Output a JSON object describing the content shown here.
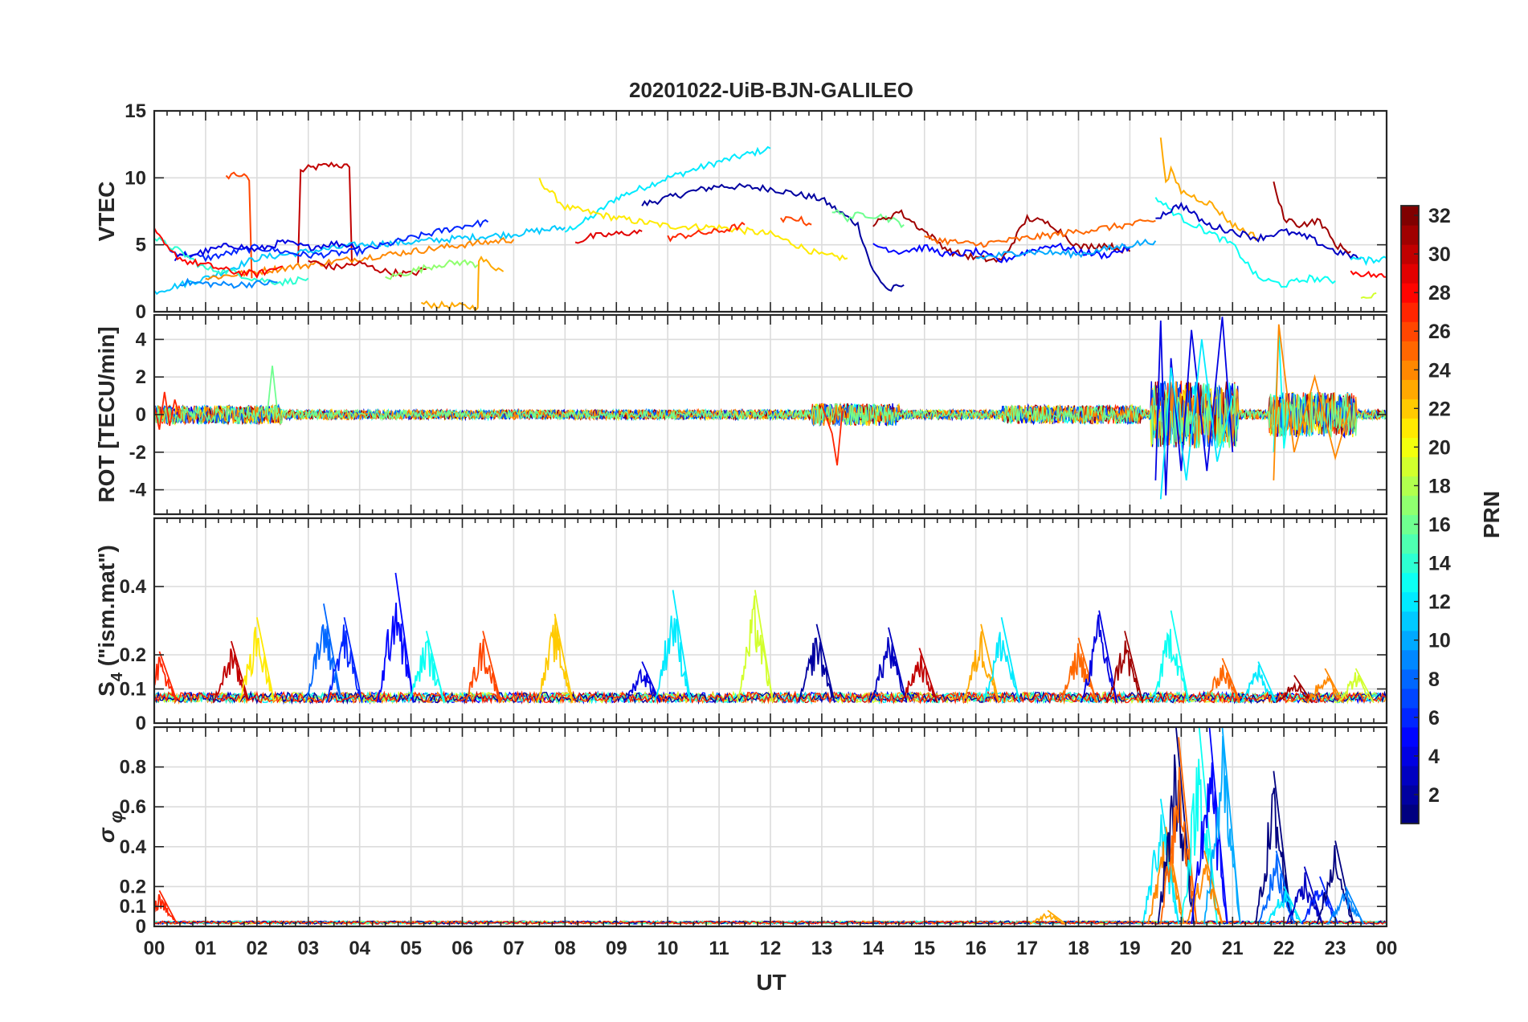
{
  "chart_data": {
    "type": "line",
    "title": "20201022-UiB-BJN-GALILEO",
    "xlabel": "UT",
    "xlim": [
      0,
      24
    ],
    "x_tick_labels": [
      "00",
      "01",
      "02",
      "03",
      "04",
      "05",
      "06",
      "07",
      "08",
      "09",
      "10",
      "11",
      "12",
      "13",
      "14",
      "15",
      "16",
      "17",
      "18",
      "19",
      "20",
      "21",
      "22",
      "23",
      "00"
    ],
    "grid": true,
    "colorbar": {
      "label": "PRN",
      "range": [
        1,
        32
      ],
      "colormap": "jet",
      "tick_labels": [
        "2",
        "4",
        "6",
        "8",
        "10",
        "12",
        "14",
        "16",
        "18",
        "20",
        "22",
        "24",
        "26",
        "28",
        "30",
        "32"
      ],
      "placement": "right"
    },
    "panels": [
      {
        "ylabel": "VTEC",
        "ylim": [
          0,
          15
        ],
        "y_ticks": [
          0,
          5,
          10,
          15
        ],
        "y_tick_labels": [
          "0",
          "5",
          "10",
          "15"
        ],
        "series": [
          {
            "prn": 30,
            "x": [
              2.8,
              2.85,
              3.0,
              3.5,
              3.8,
              3.85
            ],
            "y": [
              3.5,
              10.5,
              10.7,
              11.0,
              10.8,
              3.5
            ]
          },
          {
            "prn": 26,
            "x": [
              1.4,
              1.5,
              1.7,
              1.85,
              1.9
            ],
            "y": [
              10.0,
              10.3,
              10.2,
              9.8,
              2.5
            ]
          },
          {
            "prn": 12,
            "x": [
              8.0,
              8.5,
              9.0,
              10.0,
              11.0,
              12.0
            ],
            "y": [
              6.0,
              7.0,
              8.5,
              10.0,
              11.2,
              12.2
            ]
          },
          {
            "prn": 2,
            "x": [
              9.5,
              10.5,
              11.0,
              12.0,
              13.0,
              13.7,
              14.0,
              14.3,
              14.6
            ],
            "y": [
              8.0,
              9.0,
              9.4,
              9.2,
              8.4,
              6.5,
              3.0,
              1.6,
              2.0
            ]
          },
          {
            "prn": 21,
            "x": [
              7.5,
              8.0,
              9.0,
              10.0,
              11.0,
              12.0,
              13.0,
              13.5
            ],
            "y": [
              9.8,
              7.8,
              7.0,
              6.4,
              6.3,
              5.8,
              4.2,
              4.0
            ]
          },
          {
            "prn": 23,
            "x": [
              5.2,
              5.5,
              6.0,
              6.3,
              6.32,
              6.8
            ],
            "y": [
              0.6,
              0.5,
              0.4,
              0.3,
              4.0,
              3.0
            ]
          },
          {
            "prn": 11,
            "x": [
              0.0,
              1.0,
              2.0,
              3.0,
              4.0,
              5.0,
              6.0,
              7.0,
              8.0
            ],
            "y": [
              1.5,
              2.5,
              4.0,
              4.5,
              5.0,
              5.2,
              5.5,
              5.8,
              6.3
            ]
          },
          {
            "prn": 6,
            "x": [
              0.3,
              1.0,
              2.0,
              3.0,
              4.0,
              5.0,
              6.0,
              6.5
            ],
            "y": [
              4.5,
              4.0,
              4.8,
              4.2,
              4.5,
              5.5,
              6.4,
              6.7
            ]
          },
          {
            "prn": 4,
            "x": [
              0.4,
              1.0,
              1.5,
              2.0,
              2.5,
              3.0,
              3.5,
              4.0
            ],
            "y": [
              4.0,
              4.5,
              5.0,
              4.6,
              5.2,
              4.8,
              5.1,
              4.9
            ]
          },
          {
            "prn": 24,
            "x": [
              1.0,
              2.0,
              3.0,
              4.0,
              5.0,
              6.0,
              7.0
            ],
            "y": [
              2.5,
              3.0,
              3.5,
              4.0,
              4.5,
              5.0,
              5.4
            ]
          },
          {
            "prn": 14,
            "x": [
              0.0,
              0.5,
              1.0,
              1.5,
              2.0,
              2.5,
              3.0
            ],
            "y": [
              5.5,
              4.5,
              3.2,
              3.0,
              2.4,
              2.2,
              2.5
            ]
          },
          {
            "prn": 28,
            "x": [
              0.0,
              0.3,
              0.6,
              1.0,
              1.5,
              2.0,
              2.5
            ],
            "y": [
              6.0,
              4.5,
              3.8,
              3.5,
              3.0,
              2.8,
              3.4
            ]
          },
          {
            "prn": 9,
            "x": [
              0.5,
              1.0,
              1.5,
              2.0,
              2.4
            ],
            "y": [
              2.2,
              2.1,
              2.0,
              2.1,
              2.2
            ]
          },
          {
            "prn": 30,
            "x": [
              3.0,
              3.5,
              4.0,
              4.5,
              5.0,
              5.3
            ],
            "y": [
              3.8,
              3.3,
              3.6,
              3.0,
              2.8,
              3.2
            ]
          },
          {
            "prn": 17,
            "x": [
              4.5,
              5.0,
              5.5,
              6.0,
              6.3
            ],
            "y": [
              2.5,
              3.0,
              3.5,
              3.7,
              3.5
            ]
          },
          {
            "prn": 29,
            "x": [
              8.2,
              8.5,
              9.0,
              9.5
            ],
            "y": [
              5.2,
              5.6,
              5.8,
              6.0
            ]
          },
          {
            "prn": 27,
            "x": [
              10.0,
              10.5,
              11.0,
              11.5
            ],
            "y": [
              5.5,
              5.8,
              6.0,
              6.5
            ]
          },
          {
            "prn": 26,
            "x": [
              12.2,
              12.5,
              12.8
            ],
            "y": [
              6.8,
              7.0,
              6.5
            ]
          },
          {
            "prn": 16,
            "x": [
              13.2,
              13.5,
              13.8,
              14.2,
              14.6
            ],
            "y": [
              7.6,
              7.0,
              7.3,
              7.1,
              6.5
            ]
          },
          {
            "prn": 31,
            "x": [
              14.0,
              14.5,
              15.0,
              15.5,
              16.0,
              16.5,
              17.0,
              17.5,
              18.0,
              18.5,
              19.0
            ],
            "y": [
              6.5,
              7.5,
              6.0,
              4.5,
              4.0,
              3.8,
              7.0,
              6.5,
              4.8,
              5.0,
              4.5
            ]
          },
          {
            "prn": 5,
            "x": [
              14.0,
              14.5,
              15.0,
              15.5,
              16.0,
              16.5,
              17.0,
              17.5,
              18.0,
              18.5,
              19.0
            ],
            "y": [
              5.0,
              4.5,
              4.8,
              4.2,
              4.5,
              3.8,
              4.5,
              5.0,
              4.5,
              4.2,
              4.8
            ]
          },
          {
            "prn": 25,
            "x": [
              15.0,
              16.0,
              17.0,
              18.0,
              19.0,
              19.5
            ],
            "y": [
              5.5,
              5.0,
              5.5,
              6.0,
              6.5,
              6.8
            ]
          },
          {
            "prn": 10,
            "x": [
              16.0,
              17.0,
              18.0,
              19.0,
              19.5
            ],
            "y": [
              4.0,
              4.5,
              4.3,
              5.0,
              5.3
            ]
          },
          {
            "prn": 23,
            "x": [
              19.6,
              19.7,
              19.8,
              20.0,
              20.3,
              20.6,
              21.0,
              21.5
            ],
            "y": [
              13.0,
              9.5,
              10.5,
              9.0,
              8.5,
              8.0,
              6.5,
              5.5
            ]
          },
          {
            "prn": 13,
            "x": [
              19.5,
              20.0,
              20.5,
              21.0,
              21.5,
              22.0,
              22.5,
              23.0
            ],
            "y": [
              8.5,
              7.0,
              6.0,
              5.0,
              2.5,
              2.0,
              2.5,
              2.3
            ]
          },
          {
            "prn": 3,
            "x": [
              19.5,
              20.0,
              20.5,
              21.0,
              21.5,
              22.0,
              22.5,
              23.0,
              23.5
            ],
            "y": [
              7.0,
              8.0,
              6.5,
              6.0,
              5.5,
              6.0,
              5.5,
              4.5,
              4.0
            ]
          },
          {
            "prn": 31,
            "x": [
              21.8,
              22.0,
              22.3,
              22.7,
              23.0,
              23.3
            ],
            "y": [
              9.5,
              7.0,
              6.5,
              6.8,
              5.0,
              4.5
            ]
          },
          {
            "prn": 12,
            "x": [
              23.3,
              23.6,
              23.9,
              24.0
            ],
            "y": [
              4.0,
              3.8,
              4.0,
              4.0
            ]
          },
          {
            "prn": 28,
            "x": [
              23.3,
              23.6,
              24.0
            ],
            "y": [
              3.0,
              2.8,
              2.6
            ]
          },
          {
            "prn": 19,
            "x": [
              23.5,
              23.8
            ],
            "y": [
              1.0,
              1.4
            ]
          }
        ]
      },
      {
        "ylabel": "ROT [TECU/min]",
        "ylim": [
          -5.3,
          5.3
        ],
        "y_ticks": [
          -4,
          -2,
          0,
          2,
          4
        ],
        "y_tick_labels": [
          "-4",
          "-2",
          "0",
          "2",
          "4"
        ],
        "series_note": "",
        "series": [
          {
            "prn": 27,
            "x": [
              0.0,
              0.1,
              0.2,
              0.3,
              0.4,
              0.5
            ],
            "y": [
              0.5,
              -0.8,
              1.2,
              -0.6,
              0.8,
              -0.2
            ]
          },
          {
            "prn": 16,
            "x": [
              2.2,
              2.3,
              2.4
            ],
            "y": [
              0.0,
              2.6,
              0.1
            ]
          },
          {
            "prn": 27,
            "x": [
              13.0,
              13.2,
              13.3,
              13.4
            ],
            "y": [
              0.5,
              -1.0,
              -2.7,
              0.2
            ]
          },
          {
            "prn": 4,
            "x": [
              19.5,
              19.6,
              19.7,
              19.8,
              20.0,
              20.2,
              20.5,
              20.8,
              21.0
            ],
            "y": [
              -3.5,
              5.0,
              -4.3,
              3.0,
              -3.0,
              4.5,
              -3.0,
              5.2,
              -2.0
            ]
          },
          {
            "prn": 12,
            "x": [
              19.6,
              19.8,
              20.1,
              20.4,
              20.7,
              21.0
            ],
            "y": [
              -4.5,
              2.5,
              -3.5,
              4.0,
              -2.5,
              1.0
            ]
          },
          {
            "prn": 13,
            "x": [
              21.8,
              21.9,
              22.0,
              22.1
            ],
            "y": [
              -2.0,
              4.5,
              -1.8,
              0.5
            ]
          },
          {
            "prn": 24,
            "x": [
              21.8,
              21.9,
              22.2,
              22.6,
              23.0,
              23.3
            ],
            "y": [
              -3.5,
              4.8,
              -2.0,
              2.0,
              -2.3,
              0.5
            ]
          }
        ]
      },
      {
        "ylabel": "S4 (\"ism.mat\")",
        "ylim": [
          0,
          0.6
        ],
        "y_ticks": [
          0,
          0.1,
          0.2,
          0.4
        ],
        "y_tick_labels": [
          "0",
          "0.1",
          "0.2",
          "0.4"
        ],
        "peaks": [
          {
            "prn": 27,
            "x": 0.1,
            "y": 0.21
          },
          {
            "prn": 30,
            "x": 1.5,
            "y": 0.24
          },
          {
            "prn": 21,
            "x": 2.0,
            "y": 0.31
          },
          {
            "prn": 8,
            "x": 3.3,
            "y": 0.35
          },
          {
            "prn": 6,
            "x": 3.7,
            "y": 0.31
          },
          {
            "prn": 5,
            "x": 4.7,
            "y": 0.44
          },
          {
            "prn": 13,
            "x": 5.3,
            "y": 0.27
          },
          {
            "prn": 26,
            "x": 6.4,
            "y": 0.27
          },
          {
            "prn": 22,
            "x": 7.8,
            "y": 0.32
          },
          {
            "prn": 4,
            "x": 9.5,
            "y": 0.18
          },
          {
            "prn": 12,
            "x": 10.1,
            "y": 0.39
          },
          {
            "prn": 19,
            "x": 11.7,
            "y": 0.39
          },
          {
            "prn": 2,
            "x": 12.9,
            "y": 0.29
          },
          {
            "prn": 3,
            "x": 14.3,
            "y": 0.28
          },
          {
            "prn": 30,
            "x": 14.9,
            "y": 0.22
          },
          {
            "prn": 23,
            "x": 16.1,
            "y": 0.29
          },
          {
            "prn": 12,
            "x": 16.5,
            "y": 0.31
          },
          {
            "prn": 25,
            "x": 18.0,
            "y": 0.25
          },
          {
            "prn": 4,
            "x": 18.4,
            "y": 0.33
          },
          {
            "prn": 31,
            "x": 18.9,
            "y": 0.27
          },
          {
            "prn": 13,
            "x": 19.8,
            "y": 0.33
          },
          {
            "prn": 25,
            "x": 20.8,
            "y": 0.19
          },
          {
            "prn": 12,
            "x": 21.5,
            "y": 0.18
          },
          {
            "prn": 31,
            "x": 22.2,
            "y": 0.14
          },
          {
            "prn": 24,
            "x": 22.8,
            "y": 0.16
          },
          {
            "prn": 19,
            "x": 23.4,
            "y": 0.16
          }
        ]
      },
      {
        "ylabel": "σ φ",
        "ylim": [
          0,
          1.0
        ],
        "y_ticks": [
          0,
          0.1,
          0.2,
          0.4,
          0.6,
          0.8
        ],
        "y_tick_labels": [
          "0",
          "0.1",
          "0.2",
          "0.4",
          "0.6",
          "0.8"
        ],
        "peaks": [
          {
            "prn": 27,
            "x": 0.1,
            "y": 0.18
          },
          {
            "prn": 23,
            "x": 17.4,
            "y": 0.08
          },
          {
            "prn": 12,
            "x": 19.6,
            "y": 0.64
          },
          {
            "prn": 24,
            "x": 19.7,
            "y": 0.5
          },
          {
            "prn": 1,
            "x": 19.9,
            "y": 1.0
          },
          {
            "prn": 25,
            "x": 19.95,
            "y": 0.95
          },
          {
            "prn": 13,
            "x": 20.35,
            "y": 1.0
          },
          {
            "prn": 24,
            "x": 20.45,
            "y": 0.38
          },
          {
            "prn": 5,
            "x": 20.55,
            "y": 1.0
          },
          {
            "prn": 10,
            "x": 20.8,
            "y": 1.0
          },
          {
            "prn": 1,
            "x": 21.8,
            "y": 0.78
          },
          {
            "prn": 8,
            "x": 21.85,
            "y": 0.38
          },
          {
            "prn": 12,
            "x": 22.0,
            "y": 0.2
          },
          {
            "prn": 3,
            "x": 22.4,
            "y": 0.3
          },
          {
            "prn": 6,
            "x": 22.7,
            "y": 0.25
          },
          {
            "prn": 1,
            "x": 23.0,
            "y": 0.43
          },
          {
            "prn": 9,
            "x": 23.2,
            "y": 0.2
          }
        ]
      }
    ]
  }
}
